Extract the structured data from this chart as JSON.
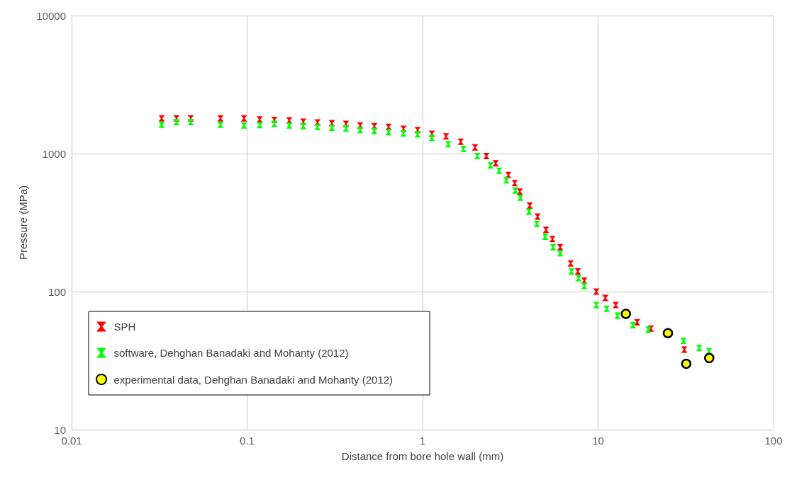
{
  "chart_data": {
    "type": "scatter",
    "xlabel": "Distance from bore hole wall (mm)",
    "ylabel": "Pressure (MPa)",
    "log": "xy",
    "xlim": [
      0.01,
      100
    ],
    "xticks": [
      0.01,
      0.1,
      1,
      10,
      100
    ],
    "ylim": [
      10,
      10000
    ],
    "yticks": [
      10,
      100,
      1000,
      10000
    ],
    "grid": true,
    "legend": "bottom left",
    "series": [
      {
        "name": "SPH",
        "color": "#ff0000",
        "marker": "cross",
        "x": [
          0.0326,
          0.0396,
          0.0477,
          0.0705,
          0.096,
          0.118,
          0.143,
          0.174,
          0.209,
          0.252,
          0.304,
          0.366,
          0.441,
          0.531,
          0.64,
          0.778,
          0.937,
          1.13,
          1.36,
          1.65,
          1.99,
          2.31,
          2.61,
          3.08,
          3.35,
          3.58,
          4.08,
          4.52,
          5.05,
          5.49,
          6.08,
          6.98,
          7.67,
          8.34,
          9.77,
          11.0,
          12.6,
          16.7,
          20.0,
          31.0
        ],
        "values": [
          1800,
          1800,
          1800,
          1800,
          1800,
          1770,
          1750,
          1740,
          1700,
          1680,
          1660,
          1640,
          1600,
          1580,
          1560,
          1510,
          1480,
          1390,
          1330,
          1220,
          1110,
          960,
          850,
          700,
          610,
          530,
          420,
          350,
          280,
          240,
          210,
          160,
          140,
          120,
          100,
          90,
          80,
          60,
          54,
          38
        ]
      },
      {
        "name": "software, Dehghan Banadaki and Mohanty (2012)",
        "color": "#00ff00",
        "marker": "cross",
        "x": [
          0.0326,
          0.0396,
          0.0477,
          0.0705,
          0.096,
          0.118,
          0.143,
          0.174,
          0.209,
          0.252,
          0.304,
          0.366,
          0.441,
          0.531,
          0.64,
          0.778,
          0.937,
          1.13,
          1.4,
          1.71,
          2.05,
          2.44,
          2.73,
          3.0,
          3.38,
          3.61,
          4.04,
          4.48,
          5.0,
          5.54,
          6.08,
          7.05,
          7.74,
          8.34,
          9.77,
          11.2,
          12.9,
          15.8,
          19.3,
          30.7,
          37.7,
          42.9
        ],
        "values": [
          1620,
          1690,
          1690,
          1620,
          1600,
          1610,
          1640,
          1600,
          1580,
          1560,
          1540,
          1520,
          1480,
          1460,
          1430,
          1400,
          1380,
          1300,
          1170,
          1080,
          960,
          820,
          750,
          640,
          540,
          480,
          380,
          310,
          250,
          210,
          190,
          140,
          125,
          110,
          80,
          75,
          67,
          57,
          53,
          44,
          39,
          37
        ]
      },
      {
        "name": "experimental data, Dehghan Banadaki and Mohanty (2012)",
        "color": "#ffff00",
        "marker": "circle",
        "x": [
          14.4,
          25.0,
          31.8,
          43.0
        ],
        "values": [
          69,
          50,
          30,
          33
        ]
      }
    ]
  }
}
